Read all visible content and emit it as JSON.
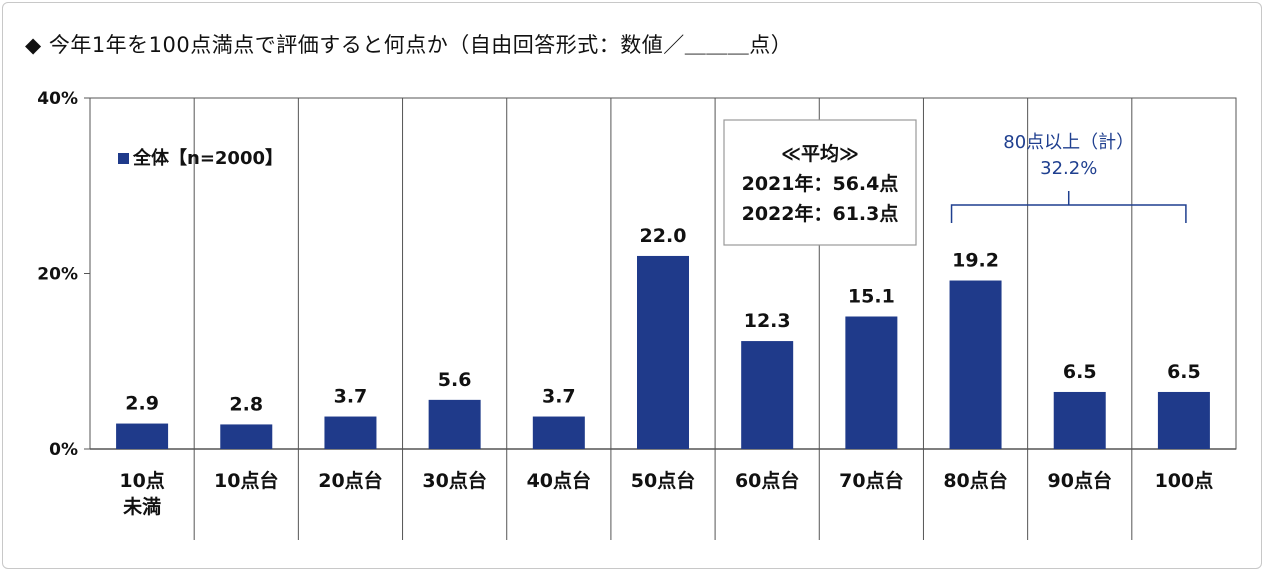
{
  "title": "◆ 今年1年を100点満点で評価すると何点か（自由回答形式：数値／＿＿＿点）",
  "chart_data": {
    "type": "bar",
    "categories": [
      "10点\n未満",
      "10点台",
      "20点台",
      "30点台",
      "40点台",
      "50点台",
      "60点台",
      "70点台",
      "80点台",
      "90点台",
      "100点"
    ],
    "series": [
      {
        "name": "全体【n=2000】",
        "values": [
          2.9,
          2.8,
          3.7,
          5.6,
          3.7,
          22.0,
          12.3,
          15.1,
          19.2,
          6.5,
          6.5
        ]
      }
    ],
    "value_labels": [
      "2.9",
      "2.8",
      "3.7",
      "5.6",
      "3.7",
      "22.0",
      "12.3",
      "15.1",
      "19.2",
      "6.5",
      "6.5"
    ],
    "ylim": [
      0,
      40
    ],
    "yticks": [
      "0%",
      "20%",
      "40%"
    ],
    "legend_placement": "top-left",
    "vertical_separators": true,
    "bar_color": "#1f3a8a",
    "average_box": {
      "title": "≪平均≫",
      "lines": [
        "2021年：56.4点",
        "2022年：61.3点"
      ]
    },
    "bracket": {
      "label": "80点以上（計）",
      "value": "32.2%",
      "color": "#1f3f8f"
    }
  }
}
